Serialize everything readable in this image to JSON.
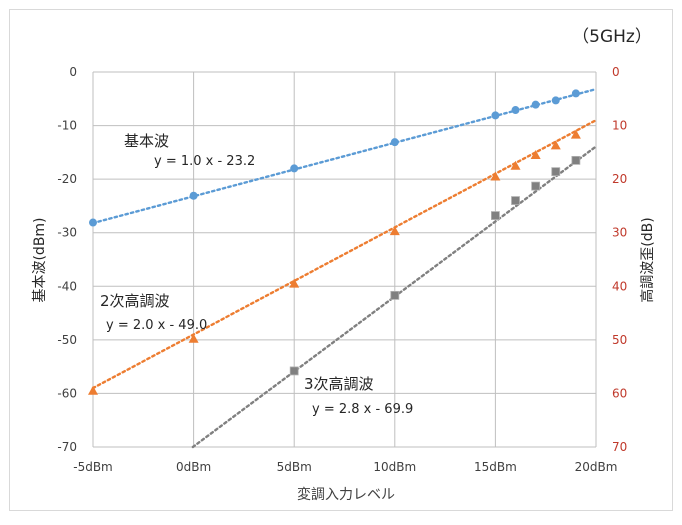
{
  "chart_data": {
    "type": "scatter",
    "corner_label": "（5GHz）",
    "xlabel": "変調入力レベル",
    "ylabel_left": "基本波(dBm)",
    "ylabel_right": "高調波歪(dB)",
    "x_ticks": [
      {
        "value": -5,
        "label": "-5dBm"
      },
      {
        "value": 0,
        "label": "0dBm"
      },
      {
        "value": 5,
        "label": "5dBm"
      },
      {
        "value": 10,
        "label": "10dBm"
      },
      {
        "value": 15,
        "label": "15dBm"
      },
      {
        "value": 20,
        "label": "20dBm"
      }
    ],
    "y_left_ticks": [
      0,
      -10,
      -20,
      -30,
      -40,
      -50,
      -60,
      -70
    ],
    "y_right_ticks": [
      "0",
      "10",
      "20",
      "30",
      "40",
      "50",
      "60",
      "70"
    ],
    "xlim": [
      -5,
      20
    ],
    "ylim": [
      -70,
      0
    ],
    "grid": true,
    "right_axis_color": "#c0392b",
    "series": [
      {
        "name": "基本波",
        "equation": "y = 1.0 x - 23.2",
        "color": "#5b9bd5",
        "marker": "circle",
        "points": [
          [
            -5,
            -28.1
          ],
          [
            0,
            -23.1
          ],
          [
            5,
            -18.0
          ],
          [
            10,
            -13.1
          ],
          [
            15,
            -8.1
          ],
          [
            16,
            -7.1
          ],
          [
            17,
            -6.1
          ],
          [
            18,
            -5.3
          ],
          [
            19,
            -4.0
          ]
        ],
        "trend": {
          "slope": 1.0,
          "intercept": -23.2
        }
      },
      {
        "name": "2次高調波",
        "equation": "y = 2.0 x - 49.0",
        "color": "#ed7d31",
        "marker": "triangle",
        "points": [
          [
            -5,
            -59.5
          ],
          [
            0,
            -49.8
          ],
          [
            5,
            -39.5
          ],
          [
            10,
            -29.7
          ],
          [
            15,
            -19.5
          ],
          [
            16,
            -17.5
          ],
          [
            17,
            -15.5
          ],
          [
            18,
            -13.7
          ],
          [
            19,
            -11.7
          ]
        ],
        "trend": {
          "slope": 2.0,
          "intercept": -49.0
        }
      },
      {
        "name": "3次高調波",
        "equation": "y = 2.8 x - 69.9",
        "color": "#808080",
        "marker": "square",
        "points": [
          [
            5,
            -55.8
          ],
          [
            10,
            -41.7
          ],
          [
            15,
            -26.8
          ],
          [
            16,
            -24.0
          ],
          [
            17,
            -21.3
          ],
          [
            18,
            -18.6
          ],
          [
            19,
            -16.5
          ]
        ],
        "trend": {
          "slope": 2.8,
          "intercept": -69.9
        }
      }
    ]
  }
}
